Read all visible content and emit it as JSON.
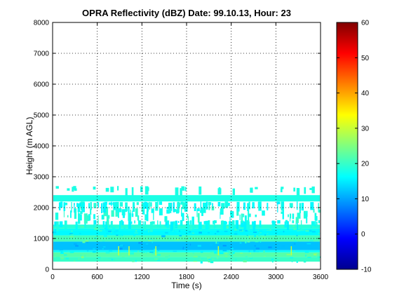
{
  "chart_data": {
    "type": "heatmap",
    "title": "OPRA Reflectivity (dBZ)  Date: 99.10.13, Hour: 23",
    "xlabel": "Time (s)",
    "ylabel": "Height (m AGL)",
    "xlim": [
      0,
      3600
    ],
    "ylim": [
      0,
      8000
    ],
    "xticks": [
      "0",
      "600",
      "1200",
      "1800",
      "2400",
      "3000",
      "3600"
    ],
    "yticks": [
      "0",
      "1000",
      "2000",
      "3000",
      "4000",
      "5000",
      "6000",
      "7000",
      "8000"
    ],
    "grid": true,
    "colorbar": {
      "colormap": "jet",
      "clim": [
        -10,
        60
      ],
      "ticks": [
        "-10",
        "0",
        "10",
        "20",
        "30",
        "40",
        "50",
        "60"
      ]
    },
    "layers": [
      {
        "y_bottom": 250,
        "y_top": 400,
        "dbz": 20
      },
      {
        "y_bottom": 400,
        "y_top": 550,
        "dbz": 22
      },
      {
        "y_bottom": 550,
        "y_top": 620,
        "dbz": 17
      },
      {
        "y_bottom": 620,
        "y_top": 900,
        "dbz": 12
      },
      {
        "y_bottom": 900,
        "y_top": 1100,
        "dbz": 21
      },
      {
        "y_bottom": 1100,
        "y_top": 1250,
        "dbz": 16
      },
      {
        "y_bottom": 1250,
        "y_top": 1320,
        "dbz": 17
      },
      {
        "y_bottom": 1320,
        "y_top": 1450,
        "dbz": 19
      },
      {
        "y_bottom": 1450,
        "y_top": 1600,
        "dbz": 17
      },
      {
        "y_bottom": 1600,
        "y_top": 2050,
        "dbz": 18
      },
      {
        "y_bottom": 2050,
        "y_top": 2200,
        "dbz": 17
      },
      {
        "y_bottom": 2200,
        "y_top": 2700,
        "dbz": 18
      }
    ]
  }
}
